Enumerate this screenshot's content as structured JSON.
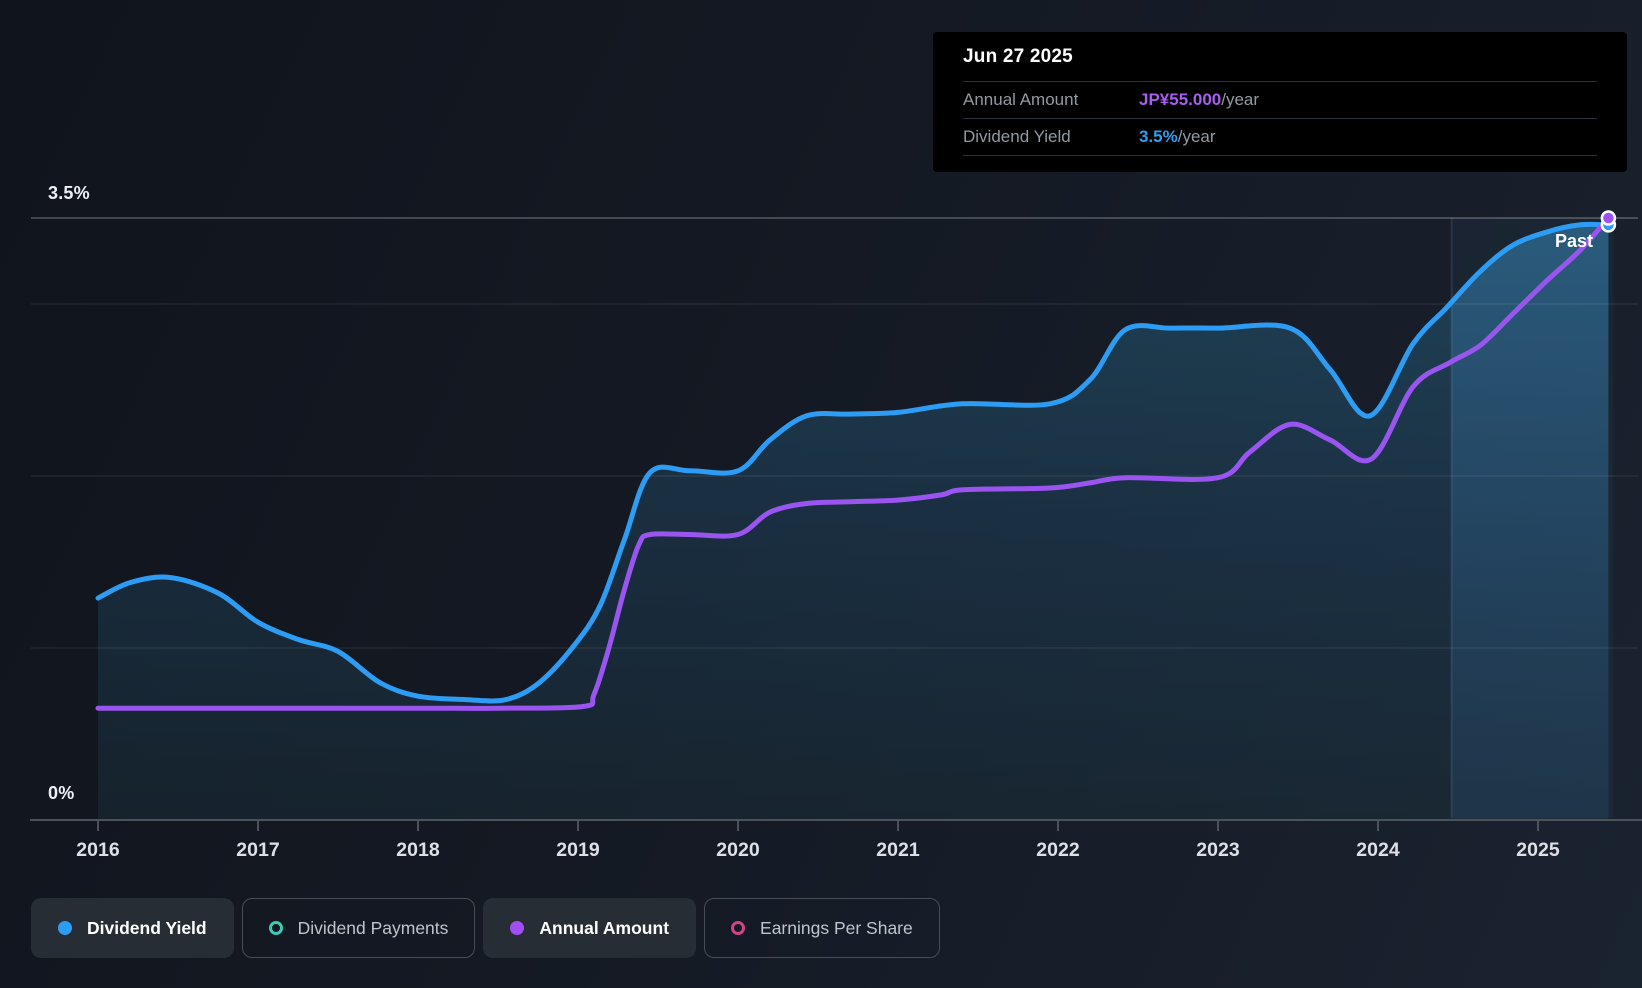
{
  "tooltip": {
    "title": "Jun 27 2025",
    "rows": [
      {
        "label": "Annual Amount",
        "value": "JP¥55.000",
        "suffix": "/year",
        "color": "#a85cf0"
      },
      {
        "label": "Dividend Yield",
        "value": "3.5%",
        "suffix": "/year",
        "color": "#2f9ef0"
      }
    ]
  },
  "legend": {
    "items": [
      {
        "label": "Dividend Yield",
        "marker": "dot",
        "color": "#2d9cf4",
        "active": true
      },
      {
        "label": "Dividend Payments",
        "marker": "ring",
        "color": "#3fc9b5",
        "active": false
      },
      {
        "label": "Annual Amount",
        "marker": "dot",
        "color": "#a14ef5",
        "active": true
      },
      {
        "label": "Earnings Per Share",
        "marker": "ring",
        "color": "#cf4484",
        "active": false
      }
    ]
  },
  "chart_data": {
    "type": "area",
    "title": "Dividend history",
    "x_ticks": [
      2016,
      2017,
      2018,
      2019,
      2020,
      2021,
      2022,
      2023,
      2024,
      2025
    ],
    "y_axis": {
      "top_label": "3.5%",
      "bottom_label": "0%",
      "min": 0,
      "max": 3.5,
      "gridlines_pct": [
        1,
        2,
        3
      ],
      "top_gridline_pct": 3.5
    },
    "annotations": {
      "past_label": "Past",
      "highlight_band_years": [
        2024.46,
        2025.47
      ]
    },
    "series": [
      {
        "name": "Dividend Yield",
        "unit": "%",
        "color": "#2d9cf4",
        "end_dot_color": "#2d9cf4",
        "points": [
          [
            2016.0,
            1.29
          ],
          [
            2016.2,
            1.38
          ],
          [
            2016.45,
            1.41
          ],
          [
            2016.75,
            1.32
          ],
          [
            2017.0,
            1.15
          ],
          [
            2017.25,
            1.05
          ],
          [
            2017.5,
            0.98
          ],
          [
            2017.76,
            0.8
          ],
          [
            2018.0,
            0.72
          ],
          [
            2018.3,
            0.7
          ],
          [
            2018.55,
            0.7
          ],
          [
            2018.76,
            0.8
          ],
          [
            2018.98,
            1.02
          ],
          [
            2019.14,
            1.25
          ],
          [
            2019.29,
            1.63
          ],
          [
            2019.45,
            2.02
          ],
          [
            2019.7,
            2.03
          ],
          [
            2020.0,
            2.03
          ],
          [
            2020.2,
            2.21
          ],
          [
            2020.43,
            2.35
          ],
          [
            2020.7,
            2.36
          ],
          [
            2021.0,
            2.37
          ],
          [
            2021.4,
            2.42
          ],
          [
            2021.95,
            2.42
          ],
          [
            2022.2,
            2.56
          ],
          [
            2022.42,
            2.85
          ],
          [
            2022.7,
            2.86
          ],
          [
            2023.0,
            2.86
          ],
          [
            2023.45,
            2.86
          ],
          [
            2023.7,
            2.62
          ],
          [
            2023.95,
            2.35
          ],
          [
            2024.22,
            2.77
          ],
          [
            2024.43,
            2.98
          ],
          [
            2024.64,
            3.19
          ],
          [
            2024.84,
            3.34
          ],
          [
            2025.06,
            3.42
          ],
          [
            2025.26,
            3.46
          ],
          [
            2025.44,
            3.46
          ]
        ]
      },
      {
        "name": "Annual Amount",
        "unit": "scaled to yield axis, final value JP¥55.000/year",
        "color": "#9a55f0",
        "end_dot_color": "#a14ef5",
        "points": [
          [
            2016.0,
            0.65
          ],
          [
            2017.0,
            0.65
          ],
          [
            2018.0,
            0.65
          ],
          [
            2018.5,
            0.65
          ],
          [
            2019.03,
            0.66
          ],
          [
            2019.1,
            0.73
          ],
          [
            2019.19,
            0.99
          ],
          [
            2019.29,
            1.34
          ],
          [
            2019.38,
            1.6
          ],
          [
            2019.45,
            1.66
          ],
          [
            2019.7,
            1.66
          ],
          [
            2020.0,
            1.66
          ],
          [
            2020.2,
            1.79
          ],
          [
            2020.43,
            1.84
          ],
          [
            2020.7,
            1.85
          ],
          [
            2021.0,
            1.86
          ],
          [
            2021.27,
            1.89
          ],
          [
            2021.41,
            1.92
          ],
          [
            2021.95,
            1.93
          ],
          [
            2022.2,
            1.96
          ],
          [
            2022.42,
            1.99
          ],
          [
            2023.0,
            1.99
          ],
          [
            2023.2,
            2.14
          ],
          [
            2023.45,
            2.3
          ],
          [
            2023.7,
            2.21
          ],
          [
            2023.96,
            2.1
          ],
          [
            2024.22,
            2.52
          ],
          [
            2024.45,
            2.66
          ],
          [
            2024.64,
            2.76
          ],
          [
            2024.84,
            2.94
          ],
          [
            2025.06,
            3.14
          ],
          [
            2025.26,
            3.31
          ],
          [
            2025.44,
            3.5
          ]
        ]
      }
    ]
  }
}
